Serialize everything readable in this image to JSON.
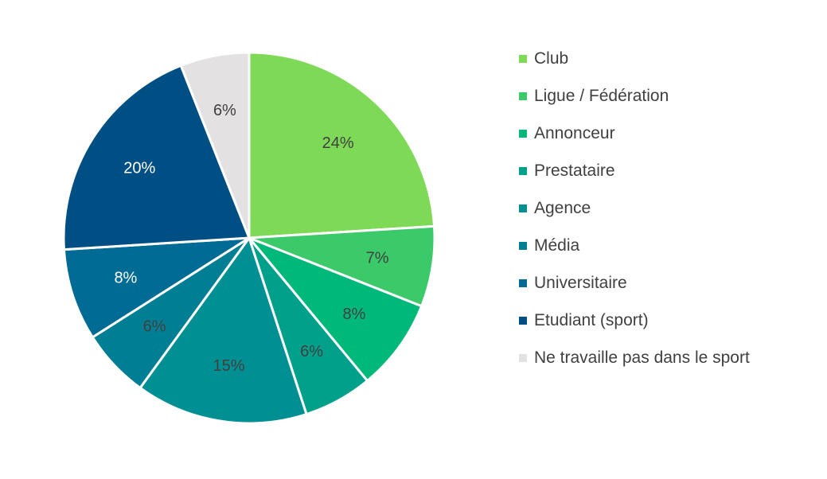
{
  "chart_data": {
    "type": "pie",
    "title": "",
    "legend_position": "right",
    "slices": [
      {
        "name": "Club",
        "value": 24,
        "label": "24%",
        "color": "#7ed957",
        "label_color": "#404040"
      },
      {
        "name": "Ligue / Fédération",
        "value": 7,
        "label": "7%",
        "color": "#3cc96a",
        "label_color": "#404040"
      },
      {
        "name": "Annonceur",
        "value": 8,
        "label": "8%",
        "color": "#00b87a",
        "label_color": "#404040"
      },
      {
        "name": "Prestataire",
        "value": 6,
        "label": "6%",
        "color": "#00a08a",
        "label_color": "#404040"
      },
      {
        "name": "Agence",
        "value": 15,
        "label": "15%",
        "color": "#009093",
        "label_color": "#404040"
      },
      {
        "name": "Média",
        "value": 6,
        "label": "6%",
        "color": "#007f94",
        "label_color": "#404040"
      },
      {
        "name": "Universitaire",
        "value": 8,
        "label": "8%",
        "color": "#006b94",
        "label_color": "#ffffff"
      },
      {
        "name": "Etudiant (sport)",
        "value": 20,
        "label": "20%",
        "color": "#004f84",
        "label_color": "#ffffff"
      },
      {
        "name": "Ne travaille pas dans le sport",
        "value": 6,
        "label": "6%",
        "color": "#e3e1e2",
        "label_color": "#404040"
      }
    ]
  }
}
